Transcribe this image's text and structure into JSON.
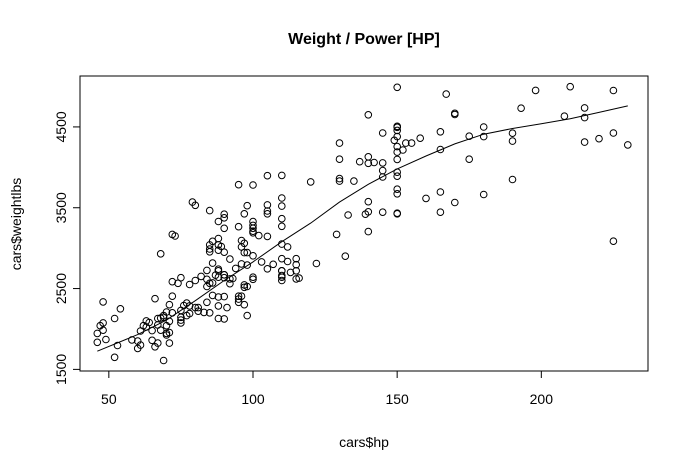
{
  "chart_data": {
    "type": "scatter",
    "title": "Weight / Power [HP]",
    "xlabel": "cars$hp",
    "ylabel": "cars$weightlbs",
    "xlim": [
      40,
      237
    ],
    "ylim": [
      1480,
      5130
    ],
    "x_ticks": [
      50,
      100,
      150,
      200
    ],
    "y_ticks": [
      1500,
      2500,
      3500,
      4500
    ],
    "grid": false,
    "legend": "none",
    "marker": "open-circle",
    "colors": {
      "points": "#000000",
      "line": "#000000",
      "frame": "#000000",
      "background": "#ffffff"
    },
    "points": [
      [
        46,
        1835
      ],
      [
        46,
        1945
      ],
      [
        47,
        2040
      ],
      [
        48,
        1985
      ],
      [
        48,
        2335
      ],
      [
        48,
        2075
      ],
      [
        49,
        1870
      ],
      [
        52,
        1650
      ],
      [
        52,
        2130
      ],
      [
        53,
        1795
      ],
      [
        54,
        2250
      ],
      [
        58,
        1865
      ],
      [
        60,
        1760
      ],
      [
        60,
        1850
      ],
      [
        61,
        1975
      ],
      [
        61,
        1800
      ],
      [
        62,
        2040
      ],
      [
        63,
        2025
      ],
      [
        63,
        2100
      ],
      [
        64,
        2080
      ],
      [
        65,
        1860
      ],
      [
        65,
        1980
      ],
      [
        66,
        2375
      ],
      [
        66,
        1780
      ],
      [
        67,
        2050
      ],
      [
        67,
        2130
      ],
      [
        67,
        1825
      ],
      [
        68,
        2135
      ],
      [
        68,
        1985
      ],
      [
        68,
        2930
      ],
      [
        69,
        2145
      ],
      [
        69,
        2165
      ],
      [
        69,
        1610
      ],
      [
        70,
        1945
      ],
      [
        70,
        2040
      ],
      [
        70,
        2210
      ],
      [
        70,
        1925
      ],
      [
        71,
        2095
      ],
      [
        71,
        2300
      ],
      [
        71,
        1955
      ],
      [
        71,
        1825
      ],
      [
        72,
        3170
      ],
      [
        72,
        2585
      ],
      [
        72,
        2200
      ],
      [
        72,
        2405
      ],
      [
        73,
        3150
      ],
      [
        74,
        2565
      ],
      [
        75,
        2230
      ],
      [
        75,
        2110
      ],
      [
        75,
        2635
      ],
      [
        75,
        2145
      ],
      [
        75,
        2075
      ],
      [
        76,
        2290
      ],
      [
        77,
        2165
      ],
      [
        77,
        2320
      ],
      [
        78,
        2190
      ],
      [
        78,
        2550
      ],
      [
        78,
        2285
      ],
      [
        79,
        3570
      ],
      [
        80,
        3530
      ],
      [
        80,
        2265
      ],
      [
        80,
        2600
      ],
      [
        81,
        2220
      ],
      [
        81,
        2265
      ],
      [
        82,
        2650
      ],
      [
        83,
        2205
      ],
      [
        84,
        2330
      ],
      [
        84,
        2525
      ],
      [
        84,
        2615
      ],
      [
        84,
        2725
      ],
      [
        85,
        2200
      ],
      [
        85,
        2990
      ],
      [
        85,
        3040
      ],
      [
        85,
        2565
      ],
      [
        85,
        3465
      ],
      [
        85,
        2955
      ],
      [
        86,
        2415
      ],
      [
        86,
        2815
      ],
      [
        86,
        3085
      ],
      [
        86,
        2570
      ],
      [
        87,
        2665
      ],
      [
        88,
        2285
      ],
      [
        88,
        2395
      ],
      [
        88,
        2640
      ],
      [
        88,
        2720
      ],
      [
        88,
        2975
      ],
      [
        88,
        3040
      ],
      [
        88,
        3120
      ],
      [
        88,
        3330
      ],
      [
        88,
        2740
      ],
      [
        88,
        2130
      ],
      [
        89,
        3020
      ],
      [
        90,
        2125
      ],
      [
        90,
        3420
      ],
      [
        90,
        2950
      ],
      [
        90,
        2670
      ],
      [
        90,
        2635
      ],
      [
        90,
        2670
      ],
      [
        90,
        3375
      ],
      [
        90,
        3245
      ],
      [
        90,
        2400
      ],
      [
        91,
        2265
      ],
      [
        92,
        2560
      ],
      [
        92,
        2865
      ],
      [
        92,
        2620
      ],
      [
        93,
        2625
      ],
      [
        94,
        2750
      ],
      [
        95,
        2405
      ],
      [
        95,
        2370
      ],
      [
        95,
        3265
      ],
      [
        95,
        2330
      ],
      [
        95,
        3785
      ],
      [
        96,
        2405
      ],
      [
        96,
        3015
      ],
      [
        96,
        3095
      ],
      [
        96,
        2805
      ],
      [
        97,
        2300
      ],
      [
        97,
        2545
      ],
      [
        97,
        3425
      ],
      [
        97,
        2515
      ],
      [
        97,
        3060
      ],
      [
        97,
        2945
      ],
      [
        98,
        2165
      ],
      [
        98,
        2790
      ],
      [
        98,
        2945
      ],
      [
        98,
        3525
      ],
      [
        98,
        2525
      ],
      [
        100,
        2615
      ],
      [
        100,
        2640
      ],
      [
        100,
        3190
      ],
      [
        100,
        3210
      ],
      [
        100,
        3245
      ],
      [
        100,
        3329
      ],
      [
        100,
        3781
      ],
      [
        100,
        2905
      ],
      [
        100,
        3282
      ],
      [
        102,
        3155
      ],
      [
        103,
        2830
      ],
      [
        105,
        3425
      ],
      [
        105,
        3460
      ],
      [
        105,
        3535
      ],
      [
        105,
        3897
      ],
      [
        105,
        3145
      ],
      [
        105,
        2745
      ],
      [
        107,
        2800
      ],
      [
        110,
        3620
      ],
      [
        110,
        3520
      ],
      [
        110,
        3050
      ],
      [
        110,
        3365
      ],
      [
        110,
        2720
      ],
      [
        110,
        2600
      ],
      [
        110,
        2720
      ],
      [
        110,
        2640
      ],
      [
        110,
        2660
      ],
      [
        110,
        3900
      ],
      [
        110,
        2870
      ],
      [
        110,
        3270
      ],
      [
        112,
        2835
      ],
      [
        112,
        3015
      ],
      [
        113,
        2700
      ],
      [
        115,
        2620
      ],
      [
        115,
        2720
      ],
      [
        115,
        2795
      ],
      [
        115,
        2870
      ],
      [
        116,
        2630
      ],
      [
        120,
        3820
      ],
      [
        122,
        2810
      ],
      [
        129,
        3170
      ],
      [
        130,
        3830
      ],
      [
        130,
        4100
      ],
      [
        130,
        3860
      ],
      [
        130,
        4300
      ],
      [
        132,
        2900
      ],
      [
        133,
        3410
      ],
      [
        135,
        3830
      ],
      [
        137,
        4070
      ],
      [
        139,
        3420
      ],
      [
        140,
        3205
      ],
      [
        140,
        3575
      ],
      [
        140,
        4130
      ],
      [
        140,
        3450
      ],
      [
        140,
        4650
      ],
      [
        140,
        4050
      ],
      [
        142,
        4060
      ],
      [
        145,
        3445
      ],
      [
        145,
        3880
      ],
      [
        145,
        4055
      ],
      [
        145,
        4425
      ],
      [
        145,
        3960
      ],
      [
        149,
        4335
      ],
      [
        150,
        3425
      ],
      [
        150,
        3432
      ],
      [
        150,
        3672
      ],
      [
        150,
        4380
      ],
      [
        150,
        4495
      ],
      [
        150,
        4257
      ],
      [
        150,
        4457
      ],
      [
        150,
        3940
      ],
      [
        150,
        3730
      ],
      [
        150,
        4188
      ],
      [
        150,
        4098
      ],
      [
        150,
        4990
      ],
      [
        150,
        3890
      ],
      [
        150,
        4508
      ],
      [
        152,
        4215
      ],
      [
        153,
        4300
      ],
      [
        155,
        4300
      ],
      [
        158,
        4360
      ],
      [
        160,
        3615
      ],
      [
        165,
        4440
      ],
      [
        165,
        3695
      ],
      [
        165,
        4220
      ],
      [
        165,
        3445
      ],
      [
        167,
        4906
      ],
      [
        170,
        4654
      ],
      [
        170,
        4668
      ],
      [
        170,
        3565
      ],
      [
        175,
        4385
      ],
      [
        175,
        4100
      ],
      [
        180,
        4380
      ],
      [
        180,
        4499
      ],
      [
        180,
        3664
      ],
      [
        190,
        4422
      ],
      [
        190,
        4325
      ],
      [
        190,
        3850
      ],
      [
        193,
        4732
      ],
      [
        198,
        4952
      ],
      [
        208,
        4633
      ],
      [
        210,
        4997
      ],
      [
        215,
        4615
      ],
      [
        215,
        4735
      ],
      [
        215,
        4312
      ],
      [
        220,
        4354
      ],
      [
        225,
        4951
      ],
      [
        225,
        4425
      ],
      [
        225,
        3086
      ],
      [
        230,
        4278
      ]
    ],
    "smooth_line": {
      "x": [
        46,
        60,
        70,
        80,
        90,
        100,
        110,
        120,
        130,
        140,
        150,
        160,
        170,
        180,
        190,
        200,
        210,
        220,
        230
      ],
      "y": [
        1725,
        1930,
        2110,
        2350,
        2600,
        2830,
        3080,
        3310,
        3570,
        3790,
        3980,
        4140,
        4290,
        4410,
        4480,
        4540,
        4600,
        4680,
        4760
      ]
    }
  }
}
